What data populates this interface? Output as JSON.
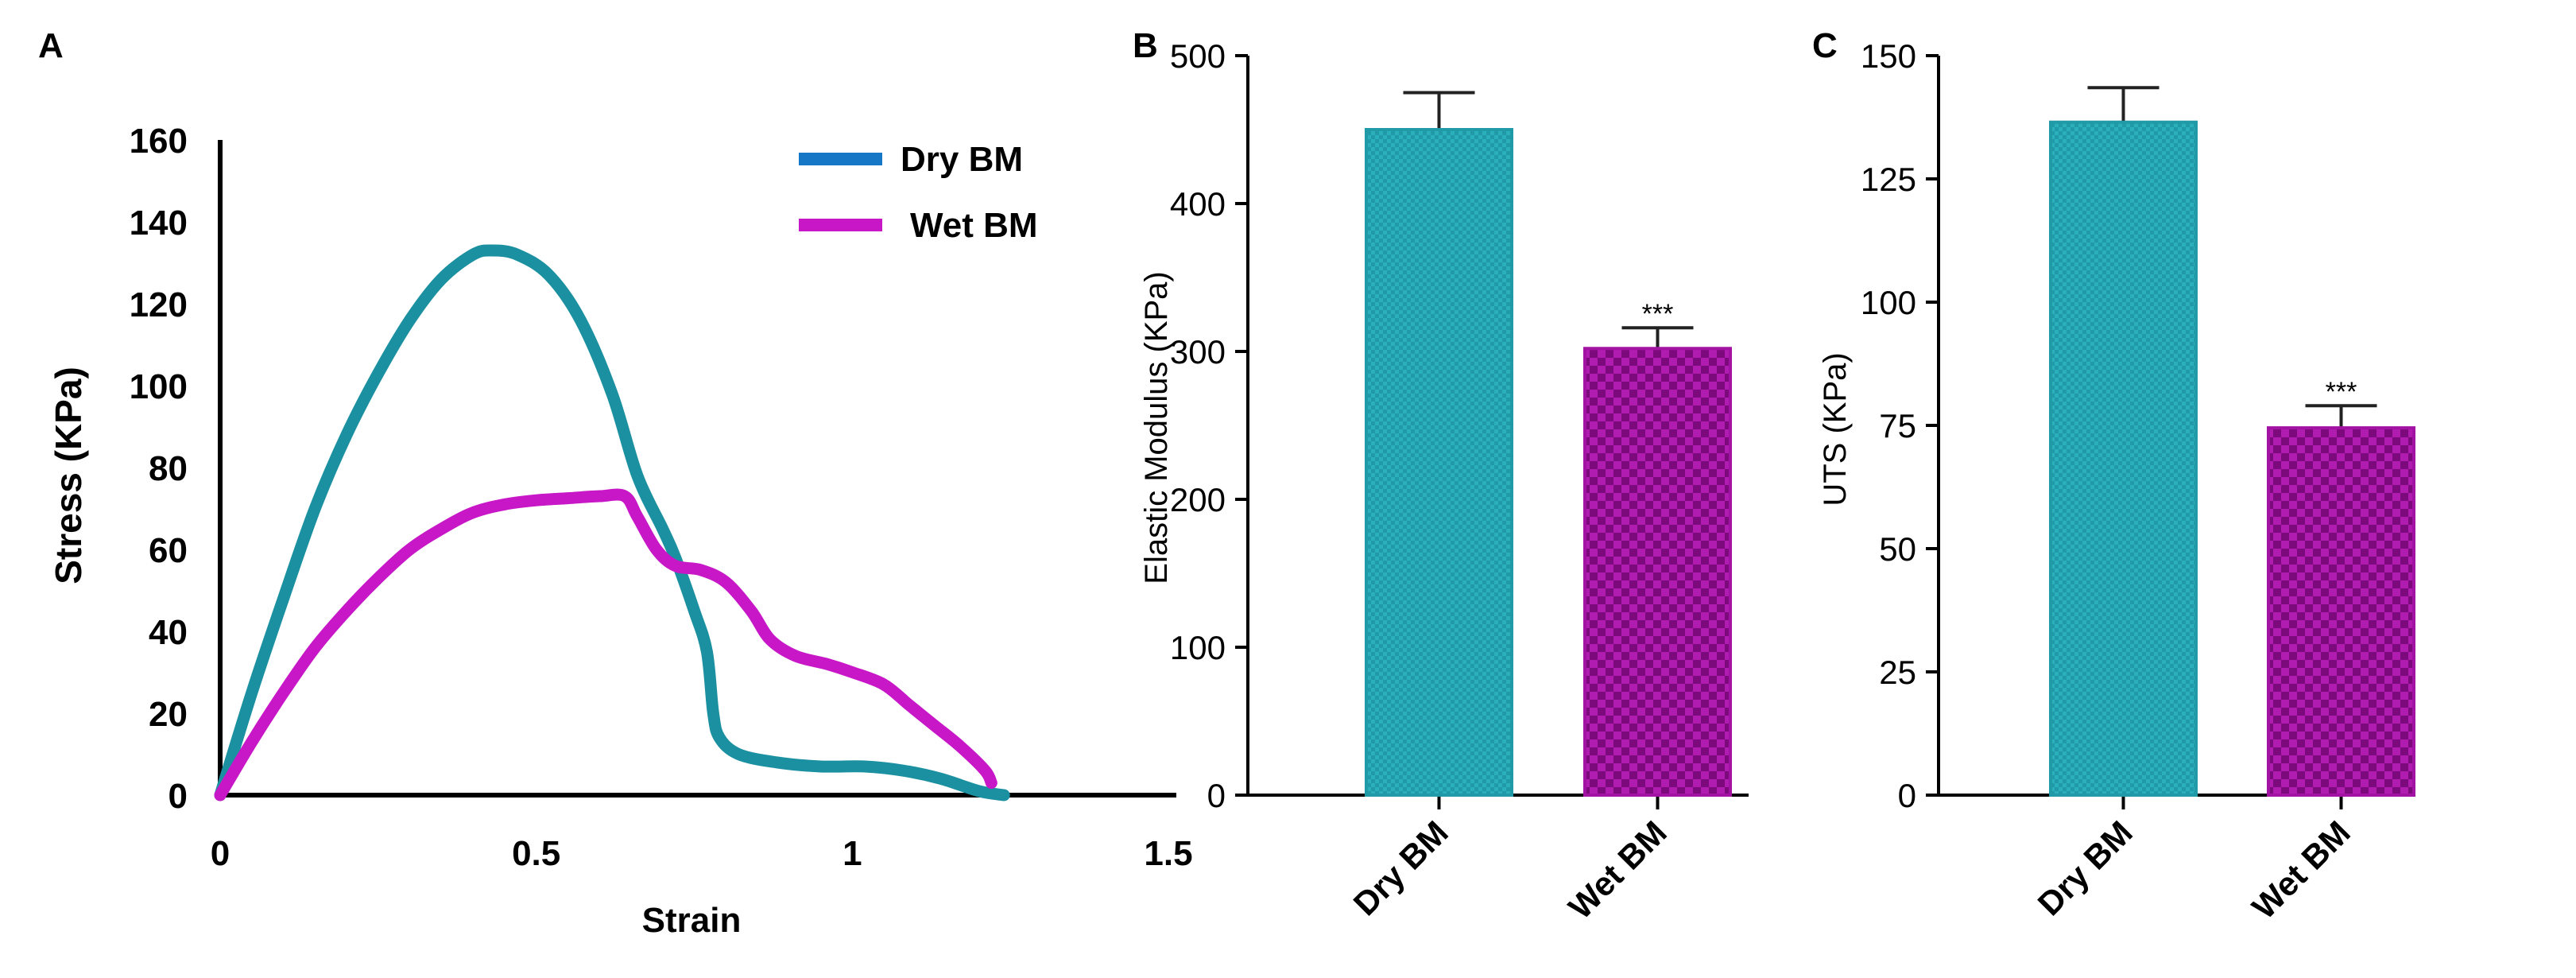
{
  "panels": {
    "A": {
      "label": "A",
      "type": "line",
      "xlabel": "Strain",
      "ylabel": "Stress (KPa)",
      "xlim": [
        0,
        1.5
      ],
      "ylim": [
        0,
        160
      ],
      "xticks": [
        0,
        0.5,
        1,
        1.5
      ],
      "xtick_labels": [
        "0",
        "0.5",
        "1",
        "1.5"
      ],
      "yticks": [
        0,
        20,
        40,
        60,
        80,
        100,
        120,
        140,
        160
      ],
      "ytick_labels": [
        "0",
        "20",
        "40",
        "60",
        "80",
        "100",
        "120",
        "140",
        "160"
      ],
      "legend": [
        {
          "name": "Dry BM",
          "color": "#1b90a0",
          "legend_color": "#1577c6"
        },
        {
          "name": "Wet BM",
          "color": "#c717c7",
          "legend_color": "#c717c7"
        }
      ],
      "series": [
        {
          "name": "Dry BM",
          "color": "#1b90a0",
          "points": [
            [
              0,
              0
            ],
            [
              0.05,
              25
            ],
            [
              0.1,
              48
            ],
            [
              0.15,
              70
            ],
            [
              0.2,
              88
            ],
            [
              0.25,
              103
            ],
            [
              0.3,
              116
            ],
            [
              0.35,
              126
            ],
            [
              0.4,
              132
            ],
            [
              0.43,
              133
            ],
            [
              0.47,
              132
            ],
            [
              0.52,
              127
            ],
            [
              0.57,
              116
            ],
            [
              0.62,
              98
            ],
            [
              0.66,
              78
            ],
            [
              0.7,
              65
            ],
            [
              0.72,
              58
            ],
            [
              0.75,
              45
            ],
            [
              0.77,
              35
            ],
            [
              0.78,
              20
            ],
            [
              0.79,
              14
            ],
            [
              0.82,
              10
            ],
            [
              0.88,
              8
            ],
            [
              0.95,
              7
            ],
            [
              1.02,
              7
            ],
            [
              1.08,
              6
            ],
            [
              1.14,
              4
            ],
            [
              1.2,
              1
            ],
            [
              1.24,
              0
            ]
          ]
        },
        {
          "name": "Wet BM",
          "color": "#c717c7",
          "points": [
            [
              0,
              0
            ],
            [
              0.05,
              13
            ],
            [
              0.1,
              25
            ],
            [
              0.15,
              36
            ],
            [
              0.2,
              45
            ],
            [
              0.25,
              53
            ],
            [
              0.3,
              60
            ],
            [
              0.35,
              65
            ],
            [
              0.4,
              69
            ],
            [
              0.45,
              71
            ],
            [
              0.5,
              72
            ],
            [
              0.55,
              72.5
            ],
            [
              0.6,
              73
            ],
            [
              0.64,
              73
            ],
            [
              0.66,
              68
            ],
            [
              0.69,
              60
            ],
            [
              0.72,
              56
            ],
            [
              0.76,
              55
            ],
            [
              0.8,
              52
            ],
            [
              0.84,
              45
            ],
            [
              0.87,
              38
            ],
            [
              0.91,
              34
            ],
            [
              0.96,
              32
            ],
            [
              1.0,
              30
            ],
            [
              1.05,
              27
            ],
            [
              1.09,
              22
            ],
            [
              1.13,
              17
            ],
            [
              1.17,
              12
            ],
            [
              1.21,
              6
            ],
            [
              1.22,
              3
            ]
          ]
        }
      ]
    },
    "B": {
      "label": "B",
      "type": "bar",
      "ylabel": "Elastic Modulus (KPa)",
      "categories": [
        "Dry BM",
        "Wet BM"
      ],
      "values": [
        450,
        302
      ],
      "errors": [
        25,
        14
      ],
      "colors": [
        "#1f9aa6",
        "#a313a3"
      ],
      "significance": [
        "",
        "***"
      ],
      "ylim": [
        0,
        500
      ],
      "yticks": [
        0,
        100,
        200,
        300,
        400,
        500
      ],
      "ytick_labels": [
        "0",
        "100",
        "200",
        "300",
        "400",
        "500"
      ]
    },
    "C": {
      "label": "C",
      "type": "bar",
      "ylabel": "UTS (KPa)",
      "categories": [
        "Dry BM",
        "Wet BM"
      ],
      "values": [
        136.5,
        74.5
      ],
      "errors": [
        7,
        4.5
      ],
      "colors": [
        "#1f9aa6",
        "#a313a3"
      ],
      "significance": [
        "",
        "***"
      ],
      "ylim": [
        0,
        150
      ],
      "yticks": [
        0,
        25,
        50,
        75,
        100,
        125,
        150
      ],
      "ytick_labels": [
        "0",
        "25",
        "50",
        "75",
        "100",
        "125",
        "150"
      ]
    }
  },
  "chart_data": [
    {
      "type": "line",
      "title": "",
      "xlabel": "Strain",
      "ylabel": "Stress (KPa)",
      "xlim": [
        0,
        1.5
      ],
      "ylim": [
        0,
        160
      ],
      "series": [
        {
          "name": "Dry BM",
          "x": [
            0,
            0.1,
            0.2,
            0.3,
            0.43,
            0.52,
            0.62,
            0.7,
            0.78,
            0.88,
            1.02,
            1.14,
            1.24
          ],
          "y": [
            0,
            48,
            88,
            116,
            133,
            127,
            98,
            65,
            20,
            8,
            7,
            4,
            0
          ]
        },
        {
          "name": "Wet BM",
          "x": [
            0,
            0.1,
            0.2,
            0.3,
            0.45,
            0.64,
            0.69,
            0.76,
            0.84,
            0.91,
            1.05,
            1.17,
            1.22
          ],
          "y": [
            0,
            25,
            45,
            60,
            71,
            73,
            60,
            55,
            45,
            34,
            27,
            12,
            3
          ]
        }
      ]
    },
    {
      "type": "bar",
      "title": "",
      "xlabel": "",
      "ylabel": "Elastic Modulus (KPa)",
      "categories": [
        "Dry BM",
        "Wet BM"
      ],
      "values": [
        450,
        302
      ],
      "errors": [
        25,
        14
      ],
      "ylim": [
        0,
        500
      ]
    },
    {
      "type": "bar",
      "title": "",
      "xlabel": "",
      "ylabel": "UTS (KPa)",
      "categories": [
        "Dry BM",
        "Wet BM"
      ],
      "values": [
        136.5,
        74.5
      ],
      "errors": [
        7,
        4.5
      ],
      "ylim": [
        0,
        150
      ]
    }
  ]
}
